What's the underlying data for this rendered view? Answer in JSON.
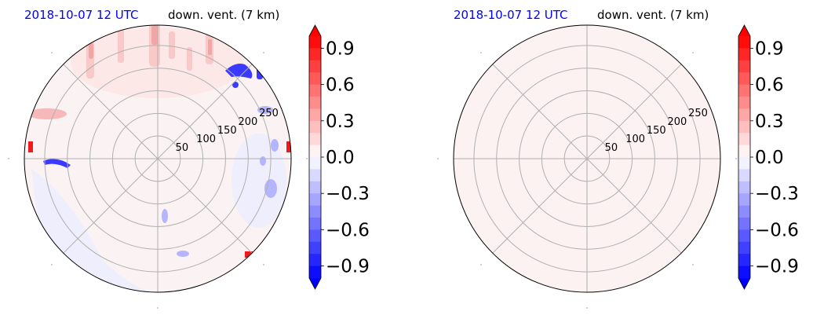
{
  "chart_data": [
    {
      "type": "heatmap",
      "projection": "polar",
      "date_label": "2018-10-07 12 UTC",
      "title": "down. vent. (7 km)",
      "ring_labels": [
        "50",
        "100",
        "150",
        "200",
        "250"
      ],
      "rings": [
        50,
        100,
        150,
        200,
        250
      ],
      "radial_spokes_deg": [
        0,
        45,
        90,
        135,
        180,
        225,
        270,
        315
      ],
      "rlim": [
        0,
        295
      ],
      "field_description": "mostly near-zero; positive (red) streaks in the northern sector and along the western rim, negative (blue) patches in the northeast and east near the edge",
      "colorbar": {
        "ticks": [
          "0.9",
          "0.6",
          "0.3",
          "0.0",
          "−0.3",
          "−0.6",
          "−0.9"
        ],
        "tick_values": [
          0.9,
          0.6,
          0.3,
          0.0,
          -0.3,
          -0.6,
          -0.9
        ],
        "vmin": -1.0,
        "vmax": 1.0,
        "levels": 21,
        "cmap": "bwr",
        "extend": "both"
      }
    },
    {
      "type": "heatmap",
      "projection": "polar",
      "date_label": "2018-10-07 12 UTC",
      "title": "down. vent. (7 km)",
      "ring_labels": [
        "50",
        "100",
        "150",
        "200",
        "250"
      ],
      "rings": [
        50,
        100,
        150,
        200,
        250
      ],
      "radial_spokes_deg": [
        0,
        45,
        90,
        135,
        180,
        225,
        270,
        315
      ],
      "rlim": [
        0,
        295
      ],
      "field_description": "uniform value slightly above zero across the whole disk",
      "uniform_value": 0.02,
      "colorbar": {
        "ticks": [
          "0.9",
          "0.6",
          "0.3",
          "0.0",
          "−0.3",
          "−0.6",
          "−0.9"
        ],
        "tick_values": [
          0.9,
          0.6,
          0.3,
          0.0,
          -0.3,
          -0.6,
          -0.9
        ],
        "vmin": -1.0,
        "vmax": 1.0,
        "levels": 21,
        "cmap": "bwr",
        "extend": "both"
      }
    }
  ],
  "colors": {
    "date_label": "#0000ff",
    "grid": "#b0b0b0",
    "border": "#000000"
  }
}
